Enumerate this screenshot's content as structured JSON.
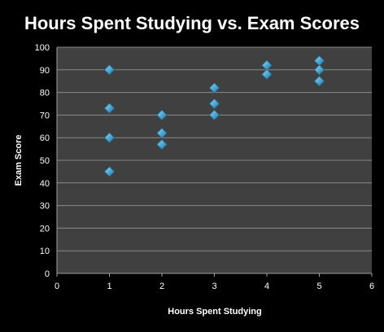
{
  "chart_data": {
    "type": "scatter",
    "title": "Hours Spent Studying vs. Exam Scores",
    "xlabel": "Hours Spent Studying",
    "ylabel": "Exam Score",
    "xlim": [
      0,
      6
    ],
    "ylim": [
      0,
      100
    ],
    "x_ticks": [
      0,
      1,
      2,
      3,
      4,
      5,
      6
    ],
    "y_ticks": [
      0,
      10,
      20,
      30,
      40,
      50,
      60,
      70,
      80,
      90,
      100
    ],
    "grid": "horizontal",
    "legend": "none",
    "marker": "diamond",
    "series": [
      {
        "points": [
          {
            "x": 1,
            "y": 90
          },
          {
            "x": 1,
            "y": 73
          },
          {
            "x": 1,
            "y": 60
          },
          {
            "x": 1,
            "y": 45
          },
          {
            "x": 2,
            "y": 70
          },
          {
            "x": 2,
            "y": 62
          },
          {
            "x": 2,
            "y": 57
          },
          {
            "x": 3,
            "y": 82
          },
          {
            "x": 3,
            "y": 75
          },
          {
            "x": 3,
            "y": 70
          },
          {
            "x": 4,
            "y": 92
          },
          {
            "x": 4,
            "y": 88
          },
          {
            "x": 5,
            "y": 94
          },
          {
            "x": 5,
            "y": 90
          },
          {
            "x": 5,
            "y": 85
          }
        ]
      }
    ]
  },
  "colors": {
    "background": "#000000",
    "plot_area": "#404040",
    "gridline": "#8a8a8a",
    "axis": "#a0a0a0",
    "text": "#ffffff",
    "marker_fill": "#4aa3cf",
    "marker_light": "#9fd6ee",
    "marker_dark": "#1f6f96"
  }
}
